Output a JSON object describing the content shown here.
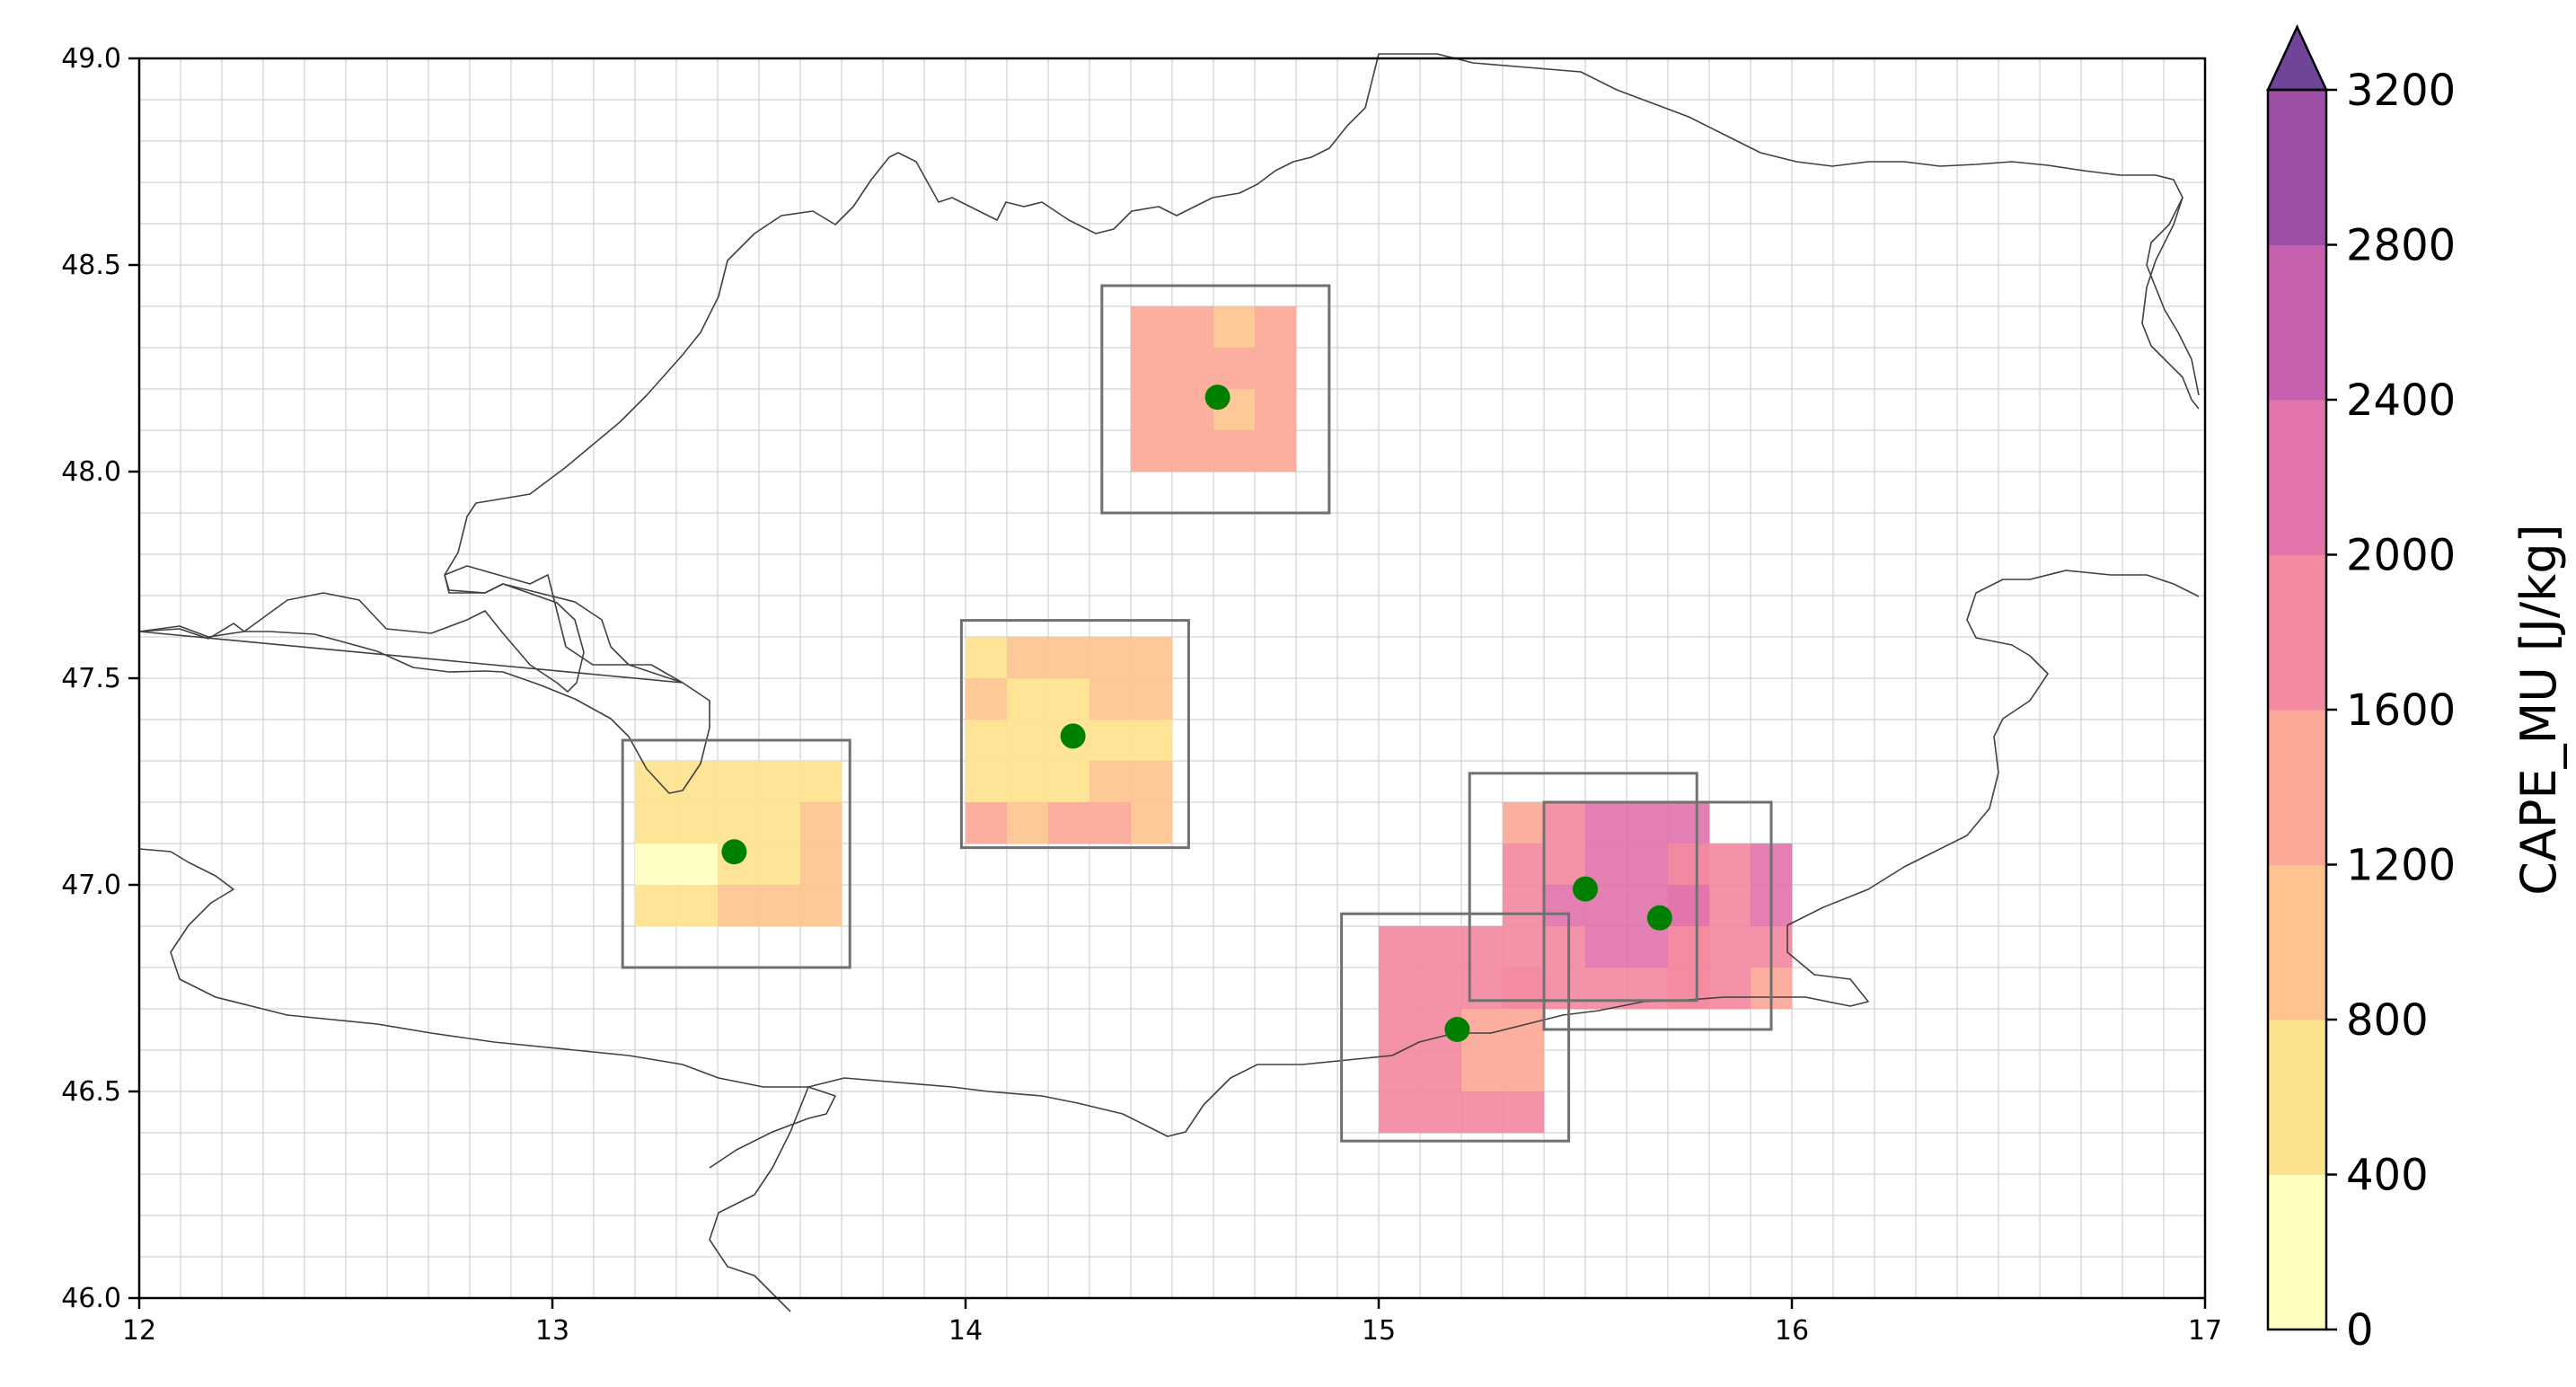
{
  "chart_data": {
    "type": "heatmap",
    "title": "",
    "xlabel": "",
    "ylabel": "",
    "xlim": [
      12,
      17
    ],
    "ylim": [
      46,
      49
    ],
    "x_ticks": [
      "12",
      "13",
      "14",
      "15",
      "16",
      "17"
    ],
    "y_ticks": [
      "46.0",
      "46.5",
      "47.0",
      "47.5",
      "48.0",
      "48.5",
      "49.0"
    ],
    "grid": "on, 0.1 degree spacing",
    "colorbar": {
      "label": "CAPE_MU  [J/kg]",
      "levels": [
        0,
        400,
        800,
        1200,
        1600,
        2000,
        2400,
        2800,
        3200
      ],
      "tick_labels": [
        "0",
        "400",
        "800",
        "1200",
        "1600",
        "2000",
        "2400",
        "2800",
        "3200"
      ],
      "colors": [
        "#ffffc0",
        "#fde28e",
        "#fdc48f",
        "#fca897",
        "#f38aa1",
        "#e174ab",
        "#c55fae",
        "#9d50a6"
      ],
      "extend": "max",
      "extend_color": "#6e4598",
      "placement": "right"
    },
    "cell_size_deg": 0.1,
    "regions": [
      {
        "lon_start": 13.2,
        "lat_top": 47.3,
        "levels": [
          [
            1,
            1,
            1,
            1,
            1
          ],
          [
            1,
            1,
            1,
            1,
            2
          ],
          [
            0,
            0,
            1,
            1,
            2
          ],
          [
            1,
            1,
            2,
            2,
            2
          ]
        ],
        "box": {
          "lon": [
            13.17,
            13.72
          ],
          "lat": [
            46.8,
            47.35
          ]
        },
        "point": {
          "lon": 13.44,
          "lat": 47.08
        }
      },
      {
        "lon_start": 14.0,
        "lat_top": 47.6,
        "levels": [
          [
            1,
            2,
            2,
            2,
            2
          ],
          [
            2,
            1,
            1,
            2,
            2
          ],
          [
            1,
            1,
            1,
            1,
            1
          ],
          [
            1,
            1,
            1,
            2,
            2
          ],
          [
            3,
            2,
            3,
            3,
            2
          ]
        ],
        "box": {
          "lon": [
            13.99,
            14.54
          ],
          "lat": [
            47.09,
            47.64
          ]
        },
        "point": {
          "lon": 14.26,
          "lat": 47.36
        }
      },
      {
        "lon_start": 14.4,
        "lat_top": 48.4,
        "levels": [
          [
            3,
            3,
            2,
            3
          ],
          [
            3,
            3,
            3,
            3
          ],
          [
            3,
            3,
            2,
            3
          ],
          [
            3,
            3,
            3,
            3
          ]
        ],
        "box": {
          "lon": [
            14.33,
            14.88
          ],
          "lat": [
            47.9,
            48.45
          ]
        },
        "point": {
          "lon": 14.61,
          "lat": 48.18
        }
      },
      {
        "lon_start": 15.3,
        "lat_top": 47.2,
        "levels": [
          [
            3,
            4,
            5,
            5,
            5
          ],
          [
            4,
            4,
            5,
            5,
            5
          ],
          [
            4,
            5,
            5,
            5,
            5
          ],
          [
            4,
            4,
            5,
            5,
            4
          ],
          [
            4,
            4,
            4,
            4,
            4
          ]
        ],
        "box": {
          "lon": [
            15.22,
            15.77
          ],
          "lat": [
            46.72,
            47.27
          ]
        },
        "point": {
          "lon": 15.5,
          "lat": 46.99
        }
      },
      {
        "lon_start": 15.7,
        "lat_top": 47.1,
        "levels": [
          [
            4,
            4,
            5
          ],
          [
            5,
            4,
            5
          ],
          [
            4,
            4,
            4
          ],
          [
            4,
            4,
            3
          ]
        ],
        "box": {
          "lon": [
            15.4,
            15.95
          ],
          "lat": [
            46.65,
            47.2
          ]
        },
        "point": {
          "lon": 15.68,
          "lat": 46.92
        }
      },
      {
        "lon_start": 15.0,
        "lat_top": 46.9,
        "levels": [
          [
            4,
            4,
            4
          ],
          [
            4,
            4,
            4,
            4
          ],
          [
            4,
            4,
            3,
            3
          ],
          [
            4,
            4,
            3,
            3
          ],
          [
            4,
            4,
            4,
            4
          ]
        ],
        "box": {
          "lon": [
            14.91,
            15.46
          ],
          "lat": [
            46.38,
            46.93
          ]
        },
        "point": {
          "lon": 15.19,
          "lat": 46.65
        }
      }
    ],
    "point_color": "#008000",
    "box_color": "#707070",
    "border_color": "#404040"
  }
}
